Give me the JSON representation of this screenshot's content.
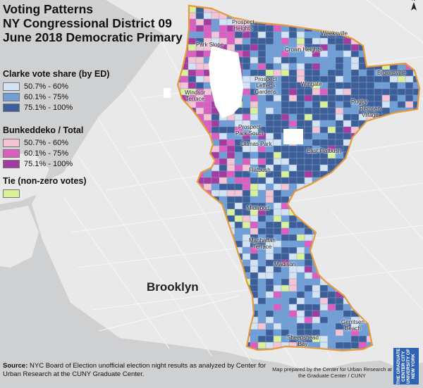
{
  "title": {
    "line1": "Voting Patterns",
    "line2": "NY Congressional District 09",
    "line3": "June 2018 Democratic Primary"
  },
  "legend": {
    "clarke": {
      "title": "Clarke vote share (by ED)",
      "items": [
        {
          "label": "50.7% - 60%",
          "color": "#d3e3f3"
        },
        {
          "label": "60.1% - 75%",
          "color": "#6f9fd6"
        },
        {
          "label": "75.1% - 100%",
          "color": "#3d5f99"
        }
      ]
    },
    "bunkeddeko": {
      "title": "Bunkeddeko / Total",
      "items": [
        {
          "label": "50.7% - 60%",
          "color": "#f4c4d4"
        },
        {
          "label": "60.1% - 75%",
          "color": "#dc5ec0"
        },
        {
          "label": "75.1% - 100%",
          "color": "#a33ca0"
        }
      ]
    },
    "tie": {
      "title": "Tie (non-zero votes)",
      "color": "#d9f29a"
    }
  },
  "places": {
    "prospect_heights": "Prospect\nHeights",
    "weeksville": "Weeksville",
    "park_slope": "Park Slope",
    "crown_heights": "Crown Heights",
    "brownsville": "Brownsville",
    "prospect_lefferts_gardens": "Prospect\nLefferts\nGardens",
    "wingate": "Wingate",
    "windsor_terrace": "Windsor\nTerrace",
    "rugby": "Rugby",
    "remsen_village": "Remsen\nVillage",
    "prospect_park_south": "Prospect\nPark South",
    "ditmas_park": "Ditmas Park",
    "east_flatbush": "East Flatbush",
    "flatbush": "Flatbush",
    "midwood": "Midwood",
    "manhattan_terrace": "Manhattan\nTerrace",
    "madison": "Madison",
    "gerritsen_beach": "Gerritsen\nBeach",
    "sheepshead_bay": "Sheepshead\nBay",
    "borough": "Brooklyn"
  },
  "source": {
    "label": "Source:",
    "text": " NYC Board of Election unofficial election night results as analyzed by Center for Urban Research at the CUNY Graduate Center."
  },
  "credit": "Map prepared by the Center for Urban Research at the Graduate Center / CUNY",
  "logo_text": "THE GRADUATE CENTER CITY UNIVERSITY OF NEW YORK",
  "colors": {
    "water": "#cfd0d2",
    "land": "#e9e9e9",
    "district_outline": "#e69a3c",
    "park": "#ffffff"
  }
}
